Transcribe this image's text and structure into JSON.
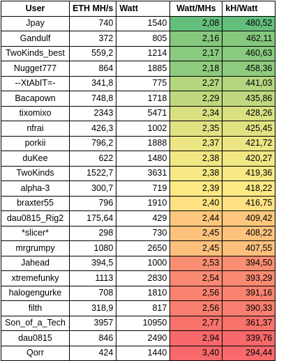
{
  "headers": {
    "user": "User",
    "eth": "ETH MH/s",
    "watt": "Watt",
    "wpm": "Watt/MHs",
    "kh": "kH/Watt"
  },
  "rows": [
    {
      "user": "Jpay",
      "eth": "740",
      "watt": "1540",
      "wpm": "2,08",
      "kh": "480,52",
      "color": "#63be7b"
    },
    {
      "user": "Gandulf",
      "eth": "372",
      "watt": "805",
      "wpm": "2,16",
      "kh": "462,11",
      "color": "#86c87d"
    },
    {
      "user": "TwoKinds_best",
      "eth": "559,2",
      "watt": "1214",
      "wpm": "2,17",
      "kh": "460,63",
      "color": "#8aca7e"
    },
    {
      "user": "Nugget777",
      "eth": "864",
      "watt": "1885",
      "wpm": "2,18",
      "kh": "458,36",
      "color": "#8fcb7e"
    },
    {
      "user": "--XtAbIT=-",
      "eth": "341,8",
      "watt": "775",
      "wpm": "2,27",
      "kh": "441,03",
      "color": "#b4d67f"
    },
    {
      "user": "Bacapown",
      "eth": "748,8",
      "watt": "1718",
      "wpm": "2,29",
      "kh": "435,86",
      "color": "#c0d980"
    },
    {
      "user": "tixomixo",
      "eth": "2343",
      "watt": "5471",
      "wpm": "2,34",
      "kh": "428,26",
      "color": "#d8e082"
    },
    {
      "user": "nfrai",
      "eth": "426,3",
      "watt": "1002",
      "wpm": "2,35",
      "kh": "425,45",
      "color": "#e1e383"
    },
    {
      "user": "porkii",
      "eth": "796,2",
      "watt": "1888",
      "wpm": "2,37",
      "kh": "421,72",
      "color": "#ebe683"
    },
    {
      "user": "duKee",
      "eth": "622",
      "watt": "1480",
      "wpm": "2,38",
      "kh": "420,27",
      "color": "#f1e784"
    },
    {
      "user": "TwoKinds",
      "eth": "1522,7",
      "watt": "3631",
      "wpm": "2,38",
      "kh": "419,36",
      "color": "#f6e884"
    },
    {
      "user": "alpha-3",
      "eth": "300,7",
      "watt": "719",
      "wpm": "2,39",
      "kh": "418,22",
      "color": "#fbe983"
    },
    {
      "user": "braxter55",
      "eth": "796",
      "watt": "1910",
      "wpm": "2,40",
      "kh": "416,75",
      "color": "#fee182"
    },
    {
      "user": "dau0815_Rig2",
      "eth": "175,64",
      "watt": "429",
      "wpm": "2,44",
      "kh": "409,42",
      "color": "#fdc87d"
    },
    {
      "user": "*slicer*",
      "eth": "298",
      "watt": "730",
      "wpm": "2,45",
      "kh": "408,22",
      "color": "#fdc37c"
    },
    {
      "user": "mrgrumpy",
      "eth": "1080",
      "watt": "2650",
      "wpm": "2,45",
      "kh": "407,55",
      "color": "#fdc07c"
    },
    {
      "user": "Jahead",
      "eth": "394,5",
      "watt": "1000",
      "wpm": "2,53",
      "kh": "394,50",
      "color": "#fa8e72"
    },
    {
      "user": "xtremefunky",
      "eth": "1113",
      "watt": "2830",
      "wpm": "2,54",
      "kh": "393,29",
      "color": "#fa8a72"
    },
    {
      "user": "halogengurke",
      "eth": "708",
      "watt": "1810",
      "wpm": "2,56",
      "kh": "391,16",
      "color": "#f98370"
    },
    {
      "user": "filth",
      "eth": "318,9",
      "watt": "817",
      "wpm": "2,56",
      "kh": "390,33",
      "color": "#f98070"
    },
    {
      "user": "Son_of_a_Tech",
      "eth": "3957",
      "watt": "10950",
      "wpm": "2,77",
      "kh": "361,37",
      "color": "#f8726c"
    },
    {
      "user": "dau0815",
      "eth": "846",
      "watt": "2490",
      "wpm": "2,94",
      "kh": "339,76",
      "color": "#f8696b"
    },
    {
      "user": "Qorr",
      "eth": "424",
      "watt": "1440",
      "wpm": "3,40",
      "kh": "294,44",
      "color": "#f8696b"
    }
  ]
}
